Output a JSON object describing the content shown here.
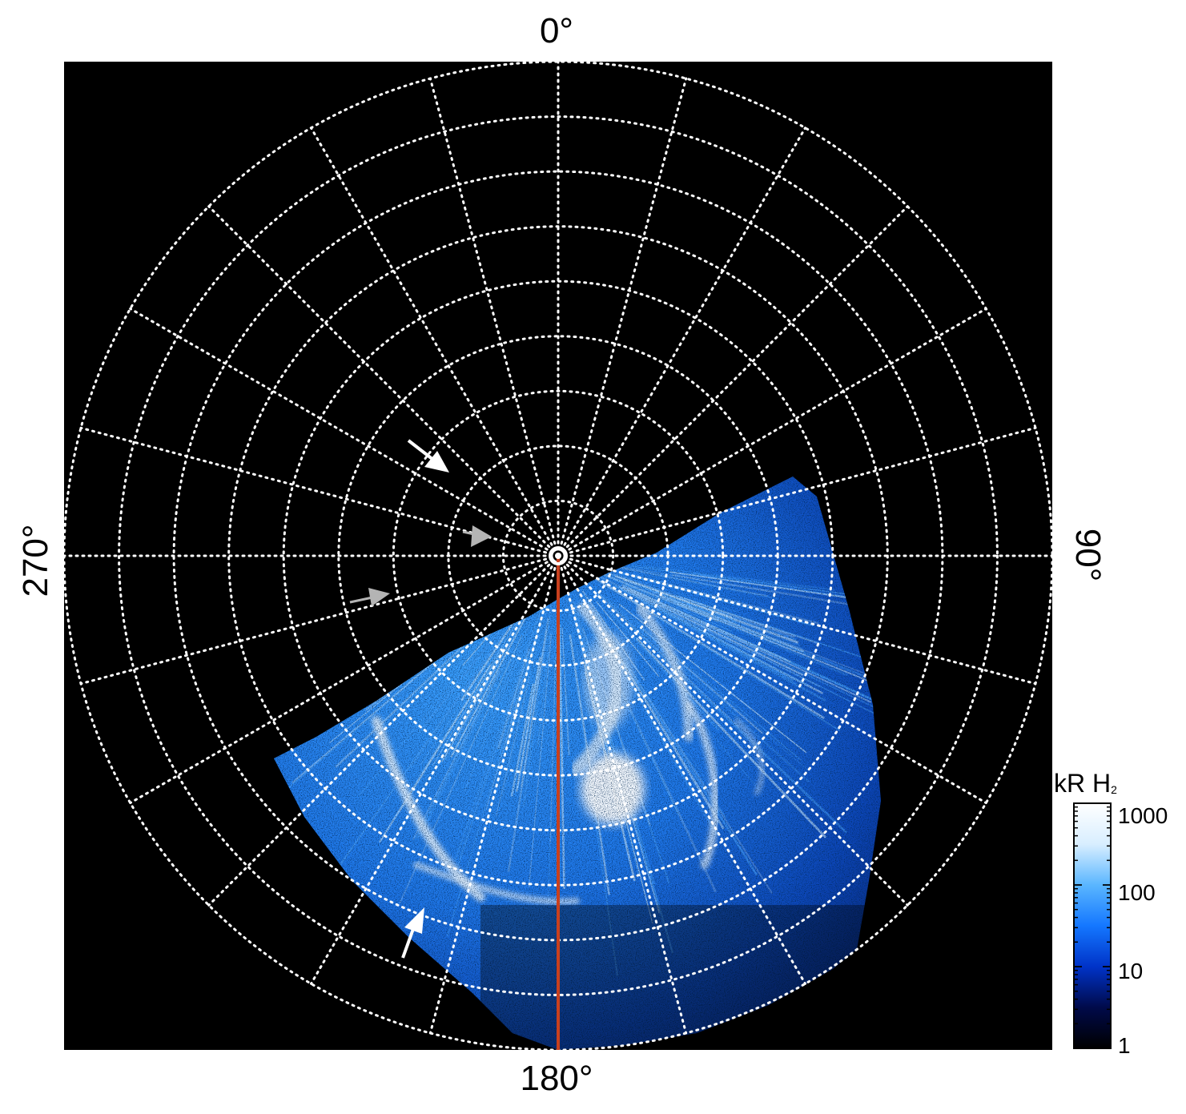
{
  "angle_labels": {
    "top": "0°",
    "right": "90°",
    "bottom": "180°",
    "left": "270°"
  },
  "colorbar": {
    "title": "kR H",
    "title_sub": "2",
    "scale": "log",
    "range": [
      1,
      1000
    ],
    "ticks": [
      "1000",
      "100",
      "10",
      "1"
    ],
    "colors": [
      "#000000",
      "#000a4a",
      "#0033c8",
      "#1477ff",
      "#5ab6ff",
      "#d8eeff",
      "#ffffff"
    ]
  },
  "grid": {
    "style": "dotted",
    "color": "#ffffff",
    "meridian_step_deg": 15,
    "rings": 9
  },
  "colors": {
    "background": "#000000",
    "meridian_line": "#c8401e",
    "arrow_white": "#ffffff",
    "arrow_grey": "#b4b4b4"
  },
  "arrows": [
    {
      "color": "white",
      "points_to": "auroral feature"
    },
    {
      "color": "grey",
      "points_to": "pole"
    },
    {
      "color": "grey",
      "points_to": "pole"
    },
    {
      "color": "white",
      "points_to": "main oval"
    }
  ]
}
